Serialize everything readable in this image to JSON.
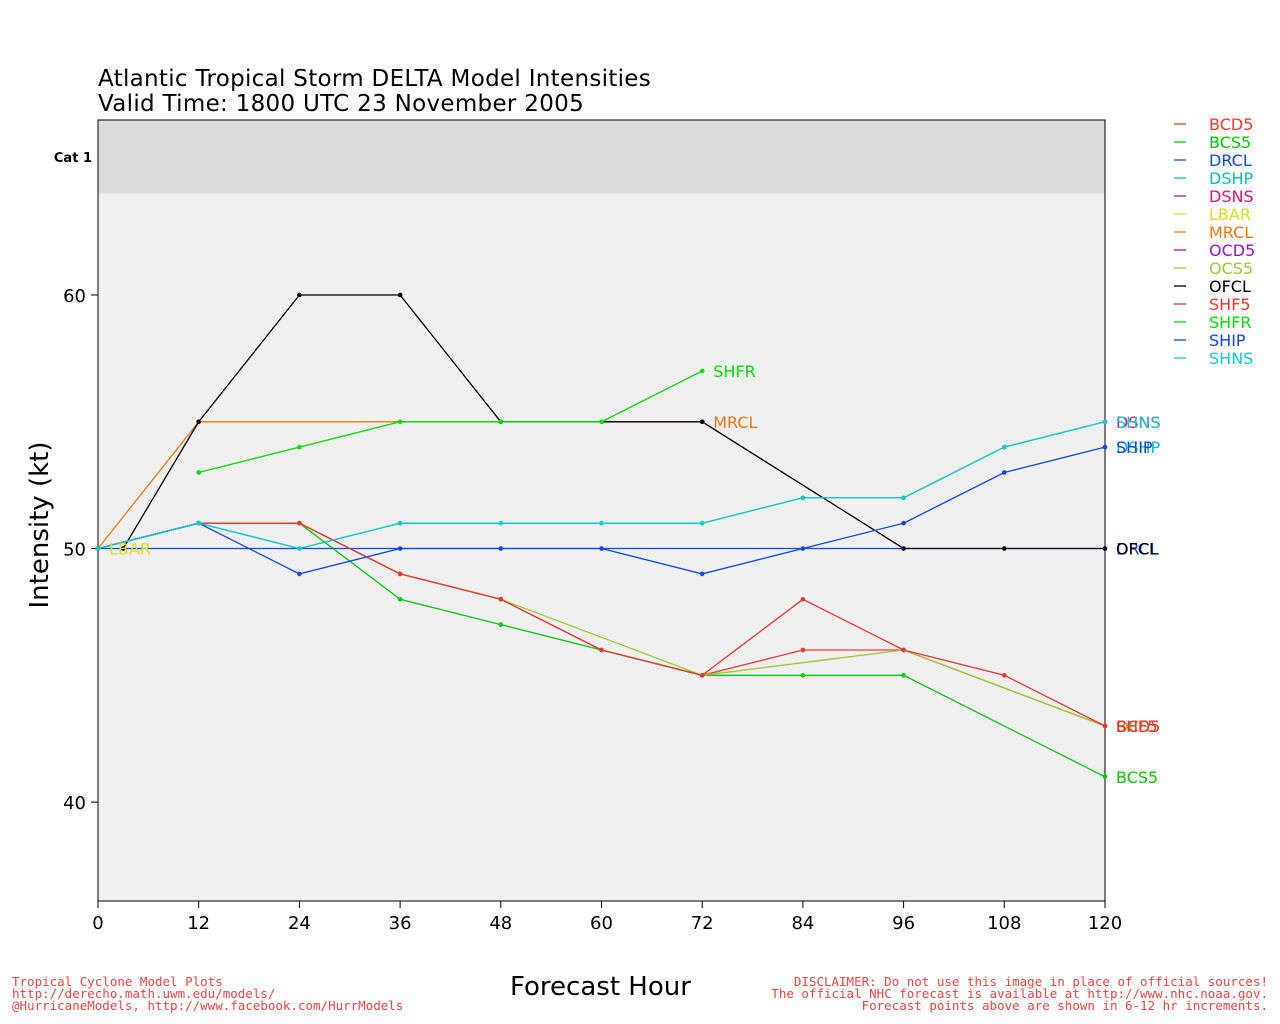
{
  "chart_data": {
    "type": "line",
    "title": "Atlantic Tropical Storm DELTA Model Intensities",
    "subtitle": "Valid Time: 1800 UTC 23 November 2005",
    "xlabel": "Forecast Hour",
    "ylabel": "Intensity (kt)",
    "xlim": [
      0,
      120
    ],
    "ylim": [
      36.1,
      66.9
    ],
    "x_ticks": [
      "0",
      "12",
      "24",
      "36",
      "48",
      "60",
      "72",
      "84",
      "96",
      "108",
      "120"
    ],
    "y_ticks": [
      "40",
      "50",
      "60"
    ],
    "category_band": {
      "label": "Cat 1",
      "from": 64,
      "to": 66.9
    },
    "grid": false,
    "legend_position": "right",
    "series": [
      {
        "name": "BCD5",
        "color": "#ff3333",
        "points": [
          [
            0,
            50
          ],
          [
            12,
            51
          ],
          [
            24,
            51
          ],
          [
            36,
            49
          ],
          [
            48,
            48
          ],
          [
            60,
            46
          ],
          [
            72,
            45
          ],
          [
            84,
            46
          ],
          [
            96,
            46
          ],
          [
            120,
            43
          ]
        ]
      },
      {
        "name": "BCS5",
        "color": "#00cc00",
        "points": [
          [
            0,
            50
          ],
          [
            12,
            51
          ],
          [
            24,
            51
          ],
          [
            36,
            48
          ],
          [
            48,
            47
          ],
          [
            60,
            46
          ],
          [
            72,
            45
          ],
          [
            84,
            45
          ],
          [
            96,
            45
          ],
          [
            120,
            41
          ]
        ]
      },
      {
        "name": "DRCL",
        "color": "#1144ee",
        "points": [
          [
            0,
            50
          ],
          [
            120,
            50
          ]
        ]
      },
      {
        "name": "DSHP",
        "color": "#11bbbb",
        "points": [
          [
            0,
            50
          ],
          [
            12,
            51
          ],
          [
            24,
            50
          ],
          [
            36,
            51
          ],
          [
            48,
            51
          ],
          [
            60,
            51
          ],
          [
            72,
            51
          ],
          [
            84,
            52
          ],
          [
            96,
            52
          ],
          [
            108,
            54
          ],
          [
            120,
            55
          ]
        ]
      },
      {
        "name": "DSNS",
        "color": "#dd1177",
        "points": [
          [
            120,
            55
          ]
        ]
      },
      {
        "name": "LBAR",
        "color": "#dddd22",
        "points": [
          [
            0,
            50
          ]
        ]
      },
      {
        "name": "MRCL",
        "color": "#ee7711",
        "points": [
          [
            0,
            50
          ],
          [
            12,
            55
          ],
          [
            72,
            55
          ]
        ]
      },
      {
        "name": "OCD5",
        "color": "#9911cc",
        "points": []
      },
      {
        "name": "OCS5",
        "color": "#99cc33",
        "points": [
          [
            0,
            50
          ],
          [
            12,
            51
          ],
          [
            24,
            51
          ],
          [
            36,
            49
          ],
          [
            48,
            48
          ],
          [
            72,
            45
          ],
          [
            96,
            46
          ],
          [
            120,
            43
          ]
        ]
      },
      {
        "name": "OFCL",
        "color": "#000000",
        "points": [
          [
            3,
            50
          ],
          [
            12,
            55
          ],
          [
            24,
            60
          ],
          [
            36,
            60
          ],
          [
            48,
            55
          ],
          [
            72,
            55
          ],
          [
            96,
            50
          ],
          [
            108,
            50
          ],
          [
            120,
            50
          ]
        ]
      },
      {
        "name": "SHF5",
        "color": "#ee3333",
        "points": [
          [
            0,
            50
          ],
          [
            12,
            51
          ],
          [
            24,
            51
          ],
          [
            36,
            49
          ],
          [
            48,
            48
          ],
          [
            60,
            46
          ],
          [
            72,
            45
          ],
          [
            84,
            48
          ],
          [
            96,
            46
          ],
          [
            108,
            45
          ],
          [
            120,
            43
          ]
        ]
      },
      {
        "name": "SHFR",
        "color": "#00dd00",
        "points": [
          [
            12,
            53
          ],
          [
            24,
            54
          ],
          [
            36,
            55
          ],
          [
            48,
            55
          ],
          [
            60,
            55
          ],
          [
            72,
            57
          ]
        ]
      },
      {
        "name": "SHIP",
        "color": "#1144ee",
        "points": [
          [
            0,
            50
          ],
          [
            12,
            51
          ],
          [
            24,
            49
          ],
          [
            36,
            50
          ],
          [
            48,
            50
          ],
          [
            60,
            50
          ],
          [
            72,
            49
          ],
          [
            84,
            50
          ],
          [
            96,
            51
          ],
          [
            108,
            53
          ],
          [
            120,
            54
          ]
        ]
      },
      {
        "name": "SHNS",
        "color": "#11cccc",
        "points": [
          [
            0,
            50
          ],
          [
            12,
            51
          ],
          [
            24,
            50
          ],
          [
            36,
            51
          ],
          [
            48,
            51
          ],
          [
            60,
            51
          ],
          [
            72,
            51
          ],
          [
            84,
            52
          ],
          [
            96,
            52
          ],
          [
            108,
            54
          ],
          [
            120,
            55
          ]
        ]
      }
    ],
    "annotations": [
      {
        "text": "LBAR",
        "x": 0,
        "y": 50,
        "color": "#dddd22"
      },
      {
        "text": "SHFR",
        "x": 72,
        "y": 57,
        "color": "#00dd00"
      },
      {
        "text": "MRCL",
        "x": 72,
        "y": 55,
        "color": "#ee7711"
      },
      {
        "text": "DSNS",
        "x": 120,
        "y": 55,
        "color": "#dd1177"
      },
      {
        "text": "SHNS",
        "x": 120,
        "y": 55,
        "color": "#11cccc"
      },
      {
        "text": "DSHP",
        "x": 120,
        "y": 54,
        "color": "#11bbbb"
      },
      {
        "text": "SHIP",
        "x": 120,
        "y": 54,
        "color": "#1144ee"
      },
      {
        "text": "DRCL",
        "x": 120,
        "y": 50,
        "color": "#1144ee"
      },
      {
        "text": "OFCL",
        "x": 120,
        "y": 50,
        "color": "#000000"
      },
      {
        "text": "OCS5",
        "x": 120,
        "y": 43,
        "color": "#99cc33"
      },
      {
        "text": "BCD5",
        "x": 120,
        "y": 43,
        "color": "#ff3333"
      },
      {
        "text": "SHF5",
        "x": 120,
        "y": 43,
        "color": "#ee3333"
      },
      {
        "text": "BCS5",
        "x": 120,
        "y": 41,
        "color": "#00cc00"
      }
    ]
  },
  "footer": {
    "left": [
      "Tropical Cyclone Model Plots",
      "http://derecho.math.uwm.edu/models/",
      "@HurricaneModels, http://www.facebook.com/HurrModels"
    ],
    "right": [
      "DISCLAIMER: Do not use this image in place of official sources!",
      "The official NHC forecast is available at http://www.nhc.noaa.gov.",
      "Forecast points above are shown in 6-12 hr increments."
    ]
  }
}
